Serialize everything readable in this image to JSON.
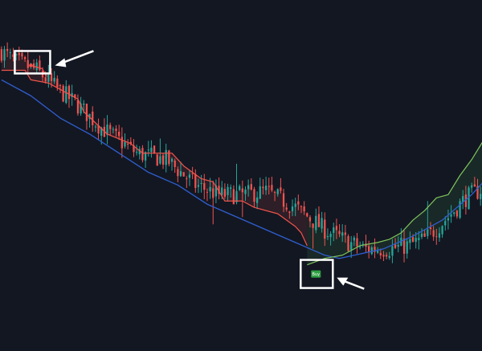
{
  "chart_data": {
    "type": "candlestick",
    "title": "",
    "xlabel": "",
    "ylabel": "",
    "grid": false,
    "legend": "none",
    "ylim": [
      0,
      100
    ],
    "x_count": 164,
    "colors": {
      "background": "#131722",
      "up": "#26a69a",
      "down": "#ef5350",
      "trail_down": "#f0554c",
      "trail_up": "#7fc45c",
      "fill_down": "#ef5350",
      "fill_up": "#4caf50",
      "ma": "#2f5fd0",
      "buy_badge": "#2ea043",
      "annotation": "#ffffff"
    },
    "close_path": [
      [
        0,
        89
      ],
      [
        4,
        86
      ],
      [
        12,
        83
      ],
      [
        18,
        78
      ],
      [
        26,
        72
      ],
      [
        34,
        65
      ],
      [
        46,
        57
      ],
      [
        56,
        55
      ],
      [
        66,
        47
      ],
      [
        74,
        44
      ],
      [
        82,
        44
      ],
      [
        90,
        45
      ],
      [
        100,
        40
      ],
      [
        110,
        33
      ],
      [
        118,
        29
      ],
      [
        124,
        27
      ],
      [
        132,
        27
      ],
      [
        138,
        28
      ],
      [
        144,
        30
      ],
      [
        152,
        37
      ],
      [
        158,
        43
      ],
      [
        164,
        46
      ]
    ],
    "trail_stop": {
      "down_segment": [
        [
          0,
          83
        ],
        [
          8,
          83
        ],
        [
          10,
          80
        ],
        [
          16,
          79
        ],
        [
          20,
          77
        ],
        [
          26,
          74
        ],
        [
          28,
          70
        ],
        [
          36,
          63
        ],
        [
          44,
          60
        ],
        [
          48,
          57
        ],
        [
          58,
          57
        ],
        [
          62,
          53
        ],
        [
          68,
          49
        ],
        [
          72,
          48
        ],
        [
          76,
          42
        ],
        [
          82,
          42
        ],
        [
          86,
          40
        ],
        [
          94,
          38
        ],
        [
          100,
          34
        ],
        [
          102,
          32
        ],
        [
          104,
          28
        ]
      ],
      "up_segment": [
        [
          104,
          22
        ],
        [
          110,
          24
        ],
        [
          116,
          25
        ],
        [
          122,
          28
        ],
        [
          128,
          29
        ],
        [
          132,
          30
        ],
        [
          136,
          32
        ],
        [
          140,
          36
        ],
        [
          144,
          39
        ],
        [
          148,
          43
        ],
        [
          152,
          44
        ],
        [
          156,
          50
        ],
        [
          160,
          55
        ],
        [
          164,
          61
        ]
      ]
    },
    "moving_average": [
      [
        0,
        80
      ],
      [
        10,
        75
      ],
      [
        20,
        68
      ],
      [
        30,
        63
      ],
      [
        40,
        57
      ],
      [
        50,
        51
      ],
      [
        60,
        47
      ],
      [
        70,
        41
      ],
      [
        80,
        37
      ],
      [
        90,
        33
      ],
      [
        100,
        29
      ],
      [
        110,
        25
      ],
      [
        115,
        24
      ],
      [
        120,
        25
      ],
      [
        130,
        27
      ],
      [
        140,
        31
      ],
      [
        150,
        36
      ],
      [
        160,
        44
      ],
      [
        164,
        48
      ]
    ],
    "signals": [
      {
        "type": "sell",
        "x": 10,
        "y": 82,
        "label": ""
      },
      {
        "type": "buy",
        "x": 107,
        "y": 19,
        "label": "Buy"
      }
    ],
    "annotations": [
      {
        "type": "box-with-arrow",
        "target": "sell"
      },
      {
        "type": "box-with-arrow",
        "target": "buy"
      }
    ]
  }
}
